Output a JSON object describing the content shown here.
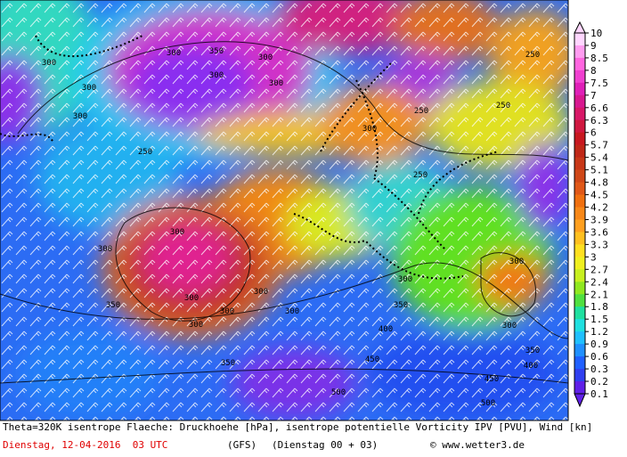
{
  "legend": {
    "labels": [
      10,
      9,
      8.5,
      8,
      7.5,
      7,
      6.6,
      6.3,
      6,
      5.7,
      5.4,
      5.1,
      4.8,
      4.5,
      4.2,
      3.9,
      3.6,
      3.3,
      3,
      2.7,
      2.4,
      2.1,
      1.8,
      1.5,
      1.2,
      0.9,
      0.6,
      0.3,
      0.2,
      0.1
    ],
    "colors": [
      "#ffd6ff",
      "#ff9cf0",
      "#ff66e0",
      "#f040d0",
      "#e020b8",
      "#d81890",
      "#d81868",
      "#d01840",
      "#c81820",
      "#c02818",
      "#c83818",
      "#d04818",
      "#e05818",
      "#f07010",
      "#f88818",
      "#ffa020",
      "#ffc020",
      "#ffe020",
      "#f0f020",
      "#c8f020",
      "#90e820",
      "#50e040",
      "#20e0a0",
      "#20e0e0",
      "#20c0ff",
      "#2090ff",
      "#2060ff",
      "#3040f0",
      "#6020e8"
    ]
  },
  "caption": {
    "description": "Theta=320K isentrope Flaeche: Druckhoehe [hPa], isentrope potentielle Vorticity IPV [PVU], Wind [kn]",
    "date": "Dienstag, 12-04-2016  03 UTC",
    "model": "(GFS)",
    "run": "(Dienstag 00 + 03)",
    "source": "© www.wetter3.de"
  },
  "contour_labels": [
    "300",
    "350",
    "300",
    "300",
    "300",
    "300",
    "300",
    "300",
    "250",
    "300",
    "300",
    "300",
    "300",
    "300",
    "350",
    "300",
    "300",
    "300",
    "300",
    "300",
    "350",
    "400",
    "450",
    "350",
    "500",
    "250",
    "250",
    "250",
    "250",
    "350",
    "400",
    "450",
    "300",
    "500"
  ]
}
